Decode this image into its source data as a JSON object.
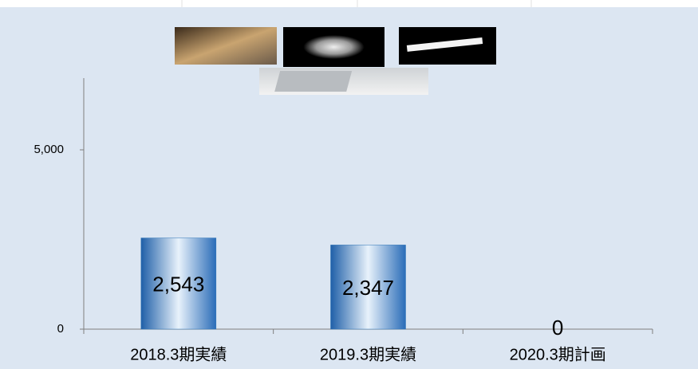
{
  "chart_data": {
    "type": "bar",
    "categories": [
      "2018.3期実績",
      "2019.3期実績",
      "2020.3期計画"
    ],
    "values": [
      2543,
      2347,
      0
    ],
    "value_labels": [
      "2,543",
      "2,347",
      "0"
    ],
    "ylim": [
      0,
      7000
    ],
    "yticks": [
      0,
      {
        "value": 5000,
        "label": "5,000"
      }
    ],
    "color": "#2e75b6"
  }
}
